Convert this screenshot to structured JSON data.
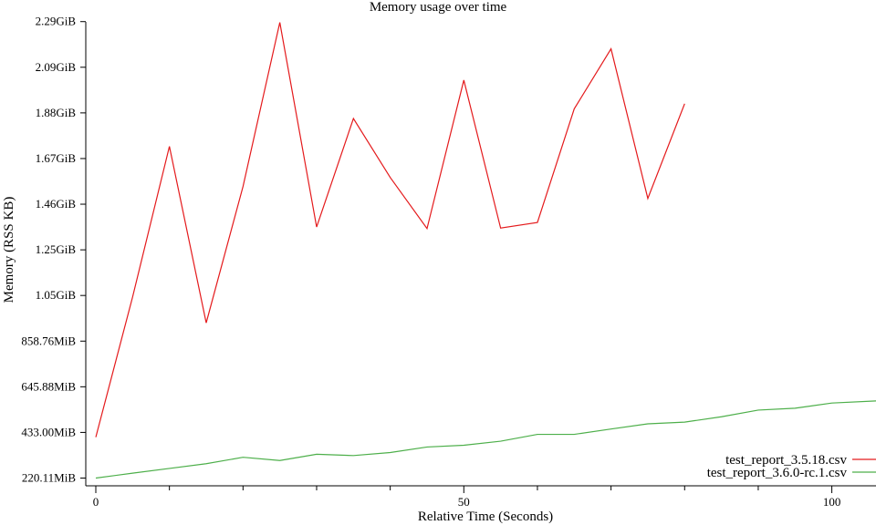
{
  "chart_data": {
    "type": "line",
    "title": "Memory usage over time",
    "xlabel": "Relative Time (Seconds)",
    "ylabel": "Memory (RSS KB)",
    "xlim": [
      0,
      106
    ],
    "ylim": [
      220.11,
      2345.6
    ],
    "x_ticks": [
      0,
      50,
      100
    ],
    "x_minor_ticks": [
      10,
      20,
      30,
      40,
      60,
      70,
      80,
      90
    ],
    "y_ticks": [
      {
        "value": 220.11,
        "label": "220.11MiB"
      },
      {
        "value": 433.0,
        "label": "433.00MiB"
      },
      {
        "value": 645.88,
        "label": "645.88MiB"
      },
      {
        "value": 858.76,
        "label": "858.76MiB"
      },
      {
        "value": 1071.65,
        "label": "1.05GiB"
      },
      {
        "value": 1284.53,
        "label": "1.25GiB"
      },
      {
        "value": 1497.41,
        "label": "1.46GiB"
      },
      {
        "value": 1710.3,
        "label": "1.67GiB"
      },
      {
        "value": 1923.18,
        "label": "1.88GiB"
      },
      {
        "value": 2136.07,
        "label": "2.09GiB"
      },
      {
        "value": 2348.95,
        "label": "2.29GiB"
      }
    ],
    "grid": false,
    "legend_position": "bottom-right",
    "series": [
      {
        "name": "test_report_3.5.18.csv",
        "color": "#e41a1c",
        "x": [
          0,
          5,
          10,
          15,
          20,
          25,
          30,
          35,
          40,
          45,
          50,
          55,
          60,
          65,
          70,
          75,
          80
        ],
        "y": [
          411,
          1065,
          1767,
          944,
          1580,
          2345,
          1391,
          1897,
          1622,
          1384,
          2076,
          1386,
          1412,
          1942,
          2222,
          1524,
          1966
        ]
      },
      {
        "name": "test_report_3.6.0-rc.1.csv",
        "color": "#4daf4a",
        "x": [
          0,
          5,
          10,
          15,
          20,
          25,
          30,
          35,
          40,
          45,
          50,
          55,
          60,
          65,
          70,
          75,
          80,
          85,
          90,
          95,
          100,
          106
        ],
        "y": [
          220,
          243,
          265,
          287,
          317,
          302,
          331,
          325,
          339,
          365,
          373,
          392,
          424,
          424,
          449,
          473,
          481,
          506,
          537,
          546,
          570,
          580
        ]
      }
    ]
  }
}
